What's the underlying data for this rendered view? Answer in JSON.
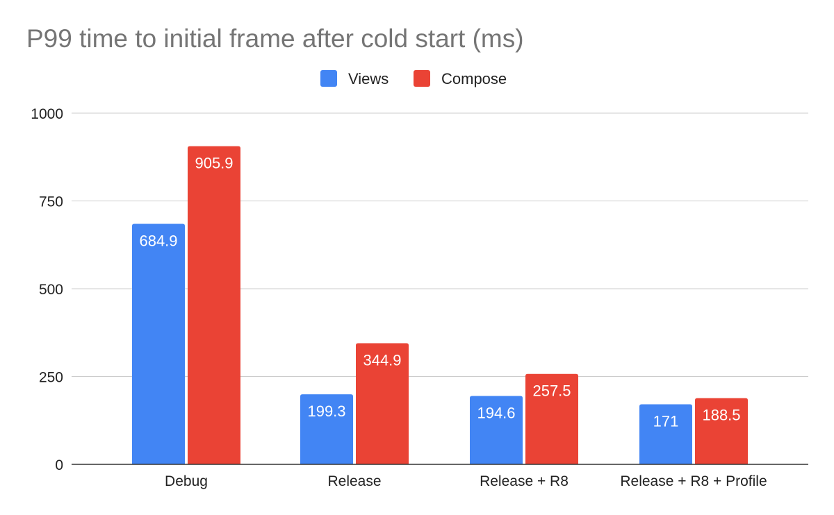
{
  "chart_data": {
    "type": "bar",
    "title": "P99 time to initial frame after cold start (ms)",
    "categories": [
      "Debug",
      "Release",
      "Release + R8",
      "Release + R8 + Profile"
    ],
    "series": [
      {
        "name": "Views",
        "color": "#4285f4",
        "values": [
          684.9,
          199.3,
          194.6,
          171
        ],
        "labels": [
          "684.9",
          "199.3",
          "194.6",
          "171"
        ]
      },
      {
        "name": "Compose",
        "color": "#ea4335",
        "values": [
          905.9,
          344.9,
          257.5,
          188.5
        ],
        "labels": [
          "905.9",
          "344.9",
          "257.5",
          "188.5"
        ]
      }
    ],
    "ylim": [
      0,
      1000
    ],
    "yticks": [
      {
        "value": 0,
        "label": "0"
      },
      {
        "value": 250,
        "label": "250"
      },
      {
        "value": 500,
        "label": "500"
      },
      {
        "value": 750,
        "label": "750"
      },
      {
        "value": 1000,
        "label": "1000"
      }
    ],
    "grid": true,
    "legend": "top-center",
    "colors": {
      "grid": "#cccccc",
      "axis": "#333333",
      "title": "#757575"
    }
  }
}
